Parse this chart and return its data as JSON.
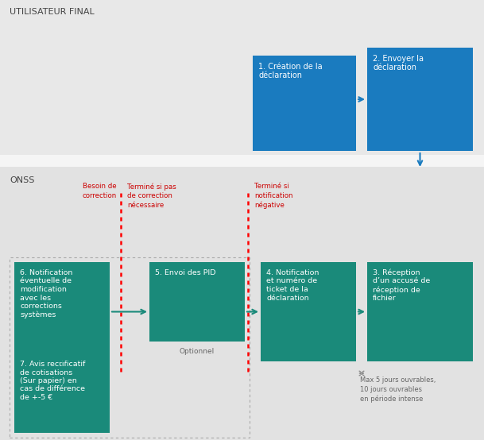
{
  "bg_top": "#e8e8e8",
  "bg_white_sep": "#ffffff",
  "bg_bottom": "#e2e2e2",
  "blue_box": "#1a7bbf",
  "teal_box": "#1a8a7a",
  "white_text": "#ffffff",
  "red_text": "#cc0000",
  "gray_text": "#666666",
  "dark_text": "#444444",
  "arrow_blue": "#1a7bbf",
  "arrow_teal": "#1a8a7a",
  "arrow_gray": "#888888",
  "label_utilisateur": "UTILISATEUR FINAL",
  "label_onss": "ONSS",
  "box1_lines": [
    "1. Création de la",
    "déclaration"
  ],
  "box2_lines": [
    "2. Envoyer la",
    "déclaration"
  ],
  "box3_lines": [
    "3. Réception",
    "d’un accusé de",
    "réception de",
    "fichier"
  ],
  "box4_lines": [
    "4. Notification",
    "et numéro de",
    "ticket de la",
    "déclaration"
  ],
  "box5_lines": [
    "5. Envoi des PID"
  ],
  "box6_lines": [
    "6. Notification",
    "éventuelle de",
    "modification",
    "avec les",
    "corrections",
    "systèmes"
  ],
  "box7_lines": [
    "7. Avis rectificatif",
    "de cotisations",
    "(Sur papier) en",
    "cas de différence",
    "de +-5 €"
  ],
  "label_besoin": "Besoin de\ncorrection",
  "label_termine1": "Terminé si pas\nde correction\nnécessaire",
  "label_termine2": "Terminé si\nnotification\nnégative",
  "label_optionnel": "Optionnel",
  "label_max_jours": "Max 5 jours ouvrables,\n10 jours ouvrables\nen période intense"
}
